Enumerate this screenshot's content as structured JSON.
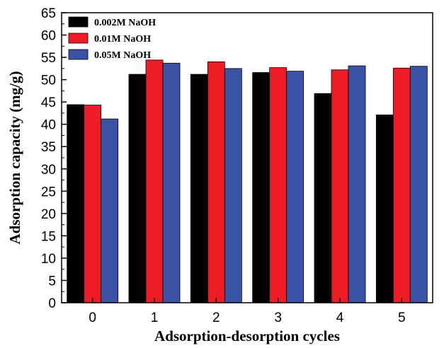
{
  "chart_data": {
    "type": "bar",
    "categories": [
      "0",
      "1",
      "2",
      "3",
      "4",
      "5"
    ],
    "series": [
      {
        "name": "0.002M NaOH",
        "color": "#000000",
        "values": [
          44.4,
          51.2,
          51.2,
          51.6,
          46.9,
          42.1
        ]
      },
      {
        "name": "0.01M NaOH",
        "color": "#ee1c25",
        "values": [
          44.3,
          54.4,
          54.0,
          52.7,
          52.2,
          52.6
        ]
      },
      {
        "name": "0.05M NaOH",
        "color": "#3a53a4",
        "values": [
          41.2,
          53.7,
          52.5,
          51.9,
          53.1,
          53.0
        ]
      }
    ],
    "xlabel": "Adsorption-desorption cycles",
    "ylabel": "Adsorption capacity (mg/g)",
    "ylim": [
      0,
      65
    ],
    "yticks": [
      0,
      5,
      10,
      15,
      20,
      25,
      30,
      35,
      40,
      45,
      50,
      55,
      60,
      65
    ],
    "grid": false,
    "legend_position": "top-left"
  }
}
